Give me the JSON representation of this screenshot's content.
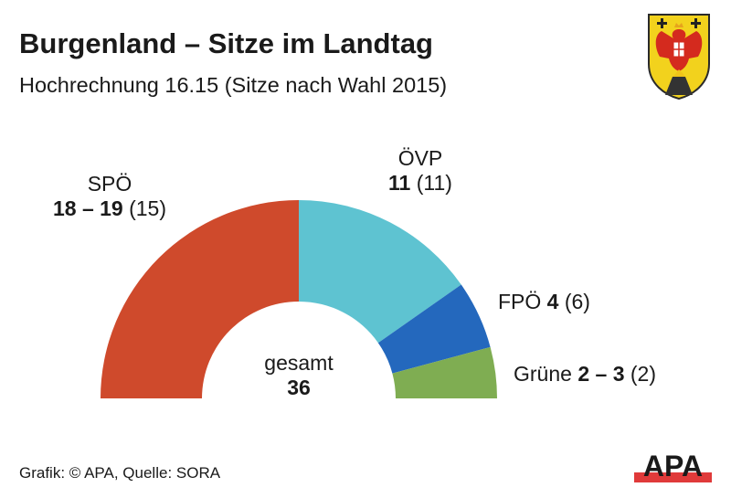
{
  "header": {
    "title": "Burgenland – Sitze im Landtag",
    "subtitle": "Hochrechnung 16.15 (Sitze nach Wahl 2015)"
  },
  "crest": {
    "name": "Burgenland coat of arms",
    "icon": "coat-of-arms-icon"
  },
  "chart_data": {
    "type": "pie",
    "variant": "half-donut (parliament seats)",
    "title": "Burgenland – Sitze im Landtag",
    "subtitle": "Hochrechnung 16.15 (Sitze nach Wahl 2015)",
    "total_label": "gesamt",
    "total_value": 36,
    "series": [
      {
        "name": "SPÖ",
        "seats_display": "18 – 19",
        "seats_min": 18,
        "seats_max": 19,
        "seats_drawn": 18,
        "previous": 15,
        "previous_display": "(15)",
        "color": "#cf4a2c"
      },
      {
        "name": "ÖVP",
        "seats_display": "11",
        "seats_min": 11,
        "seats_max": 11,
        "seats_drawn": 11,
        "previous": 11,
        "previous_display": "(11)",
        "color": "#5ec3d1"
      },
      {
        "name": "FPÖ",
        "seats_display": "4",
        "seats_min": 4,
        "seats_max": 4,
        "seats_drawn": 4,
        "previous": 6,
        "previous_display": "(6)",
        "color": "#2468bd"
      },
      {
        "name": "Grüne",
        "seats_display": "2 – 3",
        "seats_min": 2,
        "seats_max": 3,
        "seats_drawn": 3,
        "previous": 2,
        "previous_display": "(2)",
        "color": "#7fad52"
      }
    ]
  },
  "footer": {
    "credit": "Grafik: © APA, Quelle: SORA",
    "logo_text": "APA",
    "logo_accent": "#e03a3a"
  }
}
